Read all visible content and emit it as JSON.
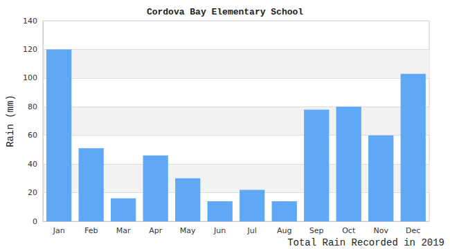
{
  "chart_data": {
    "type": "bar",
    "title": "Cordova Bay Elementary School",
    "annotation": "Total Rain Recorded in 2019",
    "y_label": "Rain (mm)",
    "categories": [
      "Jan",
      "Feb",
      "Mar",
      "Apr",
      "May",
      "Jun",
      "Jul",
      "Aug",
      "Sep",
      "Oct",
      "Nov",
      "Dec"
    ],
    "values": [
      120,
      51,
      16,
      46,
      30,
      14,
      22,
      14,
      78,
      80,
      60,
      103
    ],
    "color": "#5fa8f5",
    "ylim": [
      0,
      140
    ],
    "yticks": [
      0,
      20,
      40,
      60,
      80,
      100,
      120,
      140
    ],
    "grid": true
  }
}
